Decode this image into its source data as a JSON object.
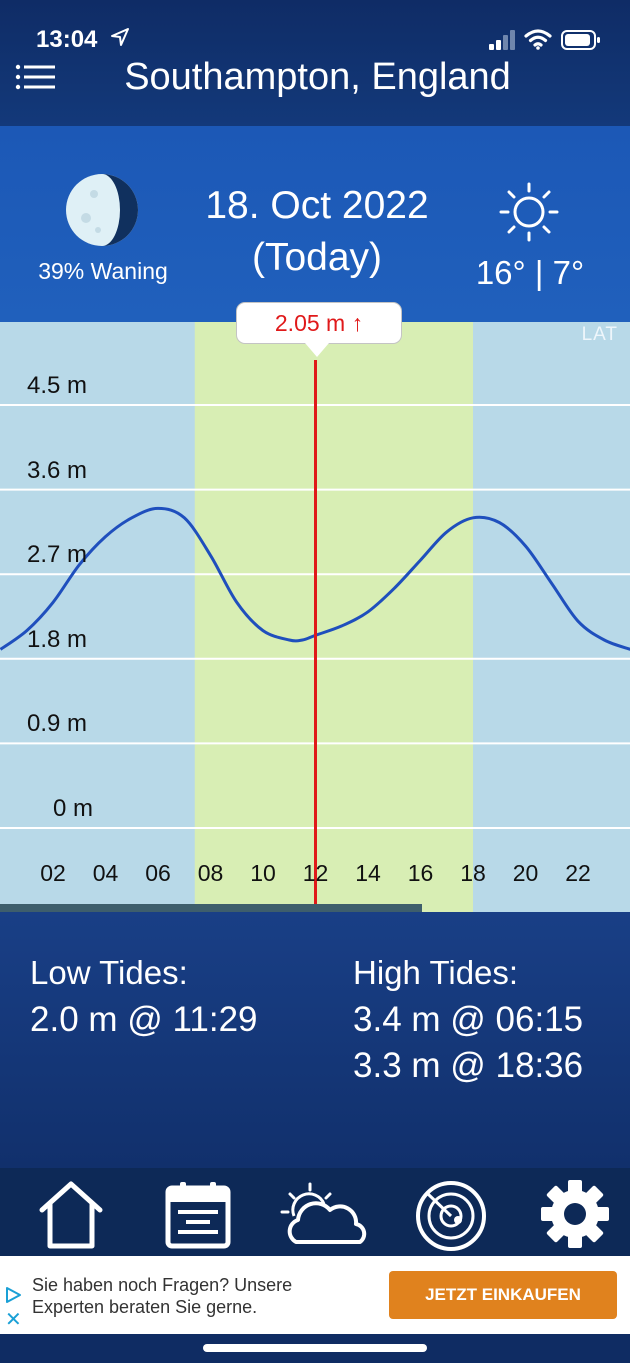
{
  "status_bar": {
    "time": "13:04"
  },
  "header": {
    "title": "Southampton, England"
  },
  "day": {
    "moon_phase": "39% Waning",
    "date": "18. Oct 2022",
    "relative": "(Today)",
    "temperature": "16° | 7°"
  },
  "chart_data": {
    "type": "line",
    "datum_label": "LAT",
    "current_marker": {
      "time": 12,
      "label": "2.05 m ↑"
    },
    "daylight_band": {
      "from": 7.4,
      "to": 18.0
    },
    "y_ticks": [
      "4.5 m",
      "3.6 m",
      "2.7 m",
      "1.8 m",
      "0.9 m",
      "0 m"
    ],
    "y_tick_values": [
      4.5,
      3.6,
      2.7,
      1.8,
      0.9,
      0
    ],
    "x_ticks": [
      "02",
      "04",
      "06",
      "08",
      "10",
      "12",
      "14",
      "16",
      "18",
      "20",
      "22"
    ],
    "x_tick_values": [
      2,
      4,
      6,
      8,
      10,
      12,
      14,
      16,
      18,
      20,
      22
    ],
    "series": [
      {
        "x": [
          0,
          1,
          2,
          3,
          4,
          5,
          6,
          7,
          8,
          9,
          10,
          11,
          11.5,
          12,
          13,
          14,
          15,
          16,
          17,
          18,
          19,
          20,
          21,
          22,
          23,
          24
        ],
        "y": [
          1.9,
          2.1,
          2.4,
          2.8,
          3.1,
          3.3,
          3.4,
          3.3,
          2.9,
          2.4,
          2.1,
          2.0,
          2.0,
          2.05,
          2.15,
          2.3,
          2.55,
          2.85,
          3.15,
          3.3,
          3.25,
          3.0,
          2.6,
          2.2,
          2.0,
          1.9
        ]
      }
    ],
    "colors": {
      "line": "#1f4fbd",
      "marker": "#e0191a",
      "background": "#b8d9e8",
      "daylight": "#d8eeb4"
    }
  },
  "tides": {
    "low_title": "Low Tides:",
    "low": [
      "2.0 m @ 11:29"
    ],
    "high_title": "High Tides:",
    "high": [
      "3.4 m @ 06:15",
      "3.3 m @ 18:36"
    ]
  },
  "tabs": [
    {
      "icon": "home-icon"
    },
    {
      "icon": "calendar-icon"
    },
    {
      "icon": "weather-icon"
    },
    {
      "icon": "radar-icon"
    },
    {
      "icon": "settings-icon"
    }
  ],
  "ad": {
    "text_line1": "Sie haben noch Fragen? Unsere",
    "text_line2": "Experten beraten Sie gerne.",
    "button": "JETZT EINKAUFEN"
  }
}
